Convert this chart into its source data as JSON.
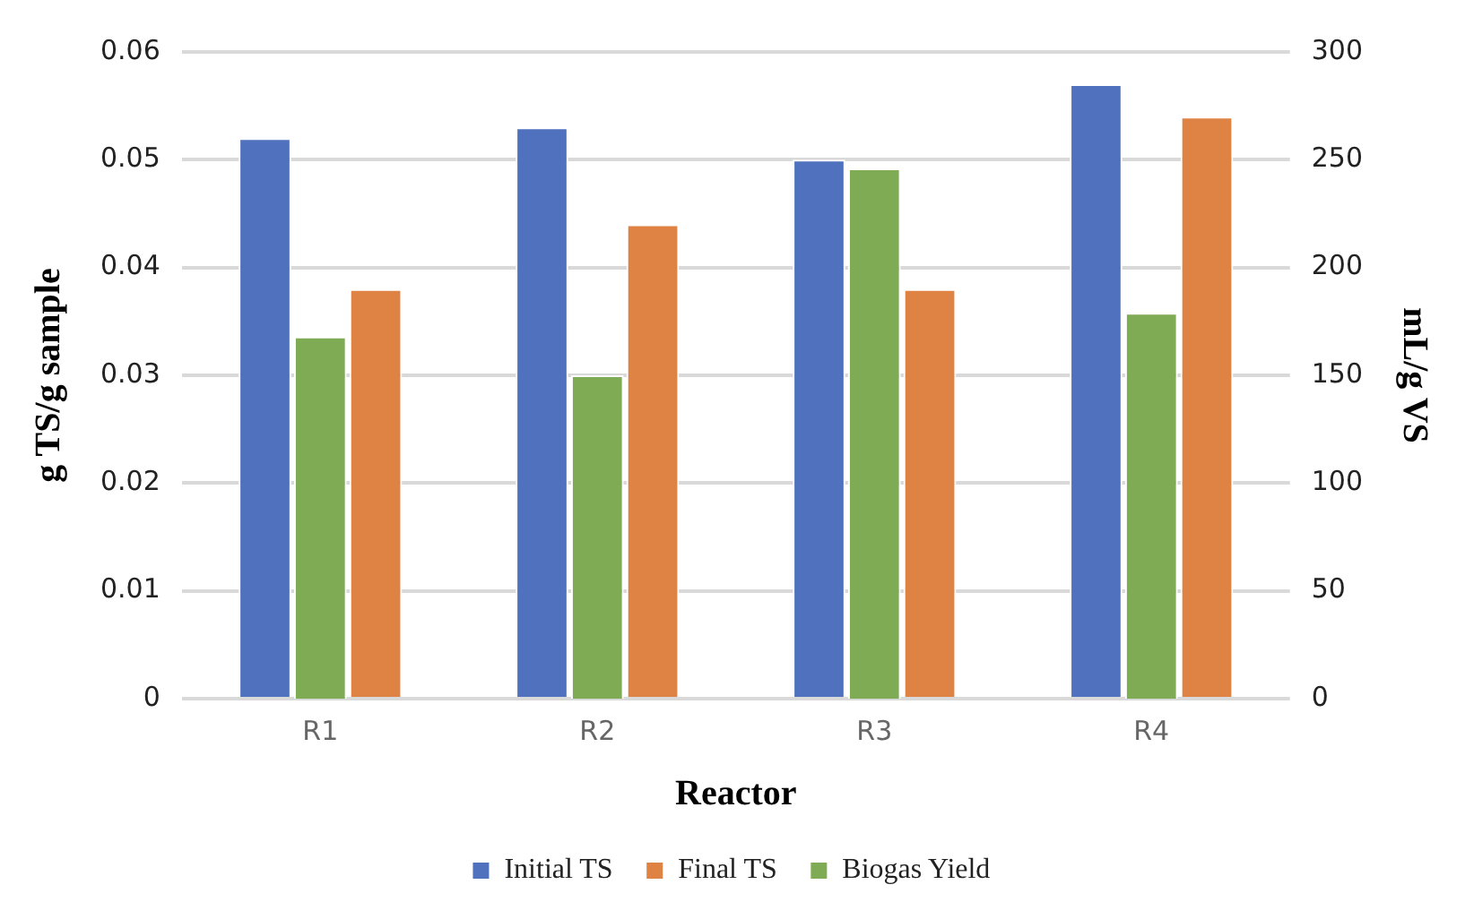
{
  "chart_data": {
    "type": "bar",
    "xlabel": "Reactor",
    "ylabel": "g TS/g sample",
    "y2label": "mL/g VS",
    "categories": [
      "R1",
      "R2",
      "R3",
      "R4"
    ],
    "series": [
      {
        "name": "Initial TS",
        "color": "#4f71be",
        "values": [
          0.052,
          0.053,
          0.05,
          0.057
        ]
      },
      {
        "name": "Final TS",
        "color": "#de8344",
        "values": [
          0.038,
          0.044,
          0.038,
          0.054
        ]
      },
      {
        "name": "Biogas Yield",
        "color": "#7fab55",
        "values": [
          168,
          150,
          246,
          179
        ],
        "axis": "y2"
      }
    ],
    "ylim": [
      0,
      0.06
    ],
    "yticks": [
      {
        "value": 0,
        "label": "0"
      },
      0.01,
      0.02,
      0.03,
      0.04,
      0.05,
      0.06
    ],
    "y2lim": [
      0,
      300
    ],
    "y2ticks": [
      0,
      50,
      100,
      150,
      200,
      250,
      300
    ],
    "grid": "y",
    "legend": "bottom"
  }
}
